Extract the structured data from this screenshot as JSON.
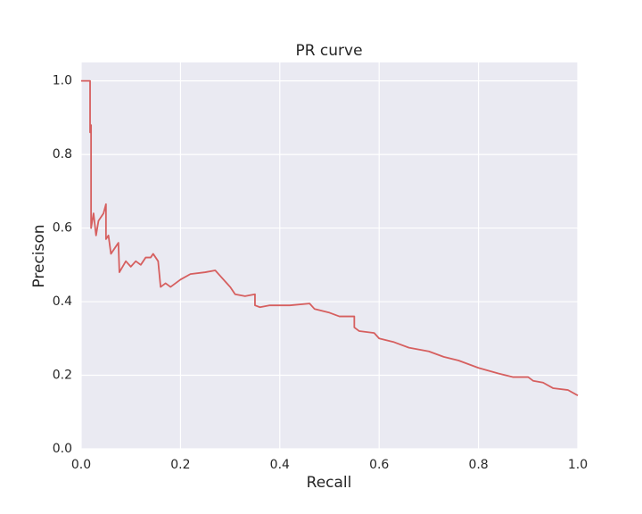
{
  "chart_data": {
    "type": "line",
    "title": "PR curve",
    "x_label": "Recall",
    "y_label": "Precison",
    "x": [
      0,
      0.018,
      0.018,
      0.02,
      0.02,
      0.025,
      0.03,
      0.035,
      0.045,
      0.05,
      0.05,
      0.055,
      0.06,
      0.07,
      0.075,
      0.077,
      0.09,
      0.1,
      0.11,
      0.12,
      0.13,
      0.14,
      0.145,
      0.15,
      0.155,
      0.16,
      0.17,
      0.18,
      0.2,
      0.22,
      0.25,
      0.27,
      0.28,
      0.3,
      0.31,
      0.33,
      0.35,
      0.35,
      0.36,
      0.38,
      0.4,
      0.42,
      0.46,
      0.47,
      0.5,
      0.52,
      0.55,
      0.55,
      0.56,
      0.59,
      0.6,
      0.63,
      0.66,
      0.7,
      0.73,
      0.76,
      0.8,
      0.84,
      0.87,
      0.9,
      0.91,
      0.93,
      0.95,
      0.98,
      1.0
    ],
    "series": [
      {
        "color": "#d65f5f",
        "values": [
          1.0,
          1.0,
          0.86,
          0.88,
          0.6,
          0.64,
          0.58,
          0.62,
          0.64,
          0.665,
          0.57,
          0.58,
          0.53,
          0.55,
          0.56,
          0.48,
          0.51,
          0.495,
          0.51,
          0.5,
          0.52,
          0.52,
          0.53,
          0.52,
          0.51,
          0.44,
          0.45,
          0.44,
          0.46,
          0.475,
          0.48,
          0.485,
          0.47,
          0.44,
          0.42,
          0.415,
          0.42,
          0.39,
          0.385,
          0.39,
          0.39,
          0.39,
          0.395,
          0.38,
          0.37,
          0.36,
          0.36,
          0.33,
          0.32,
          0.315,
          0.3,
          0.29,
          0.275,
          0.265,
          0.25,
          0.24,
          0.22,
          0.205,
          0.195,
          0.195,
          0.185,
          0.18,
          0.165,
          0.16,
          0.145
        ]
      }
    ],
    "xlim": [
      0,
      1
    ],
    "ylim": [
      0,
      1.05
    ],
    "xticks": [
      {
        "value": 0,
        "label": "0.0"
      },
      0.2,
      0.4,
      0.6,
      0.8,
      {
        "value": 1,
        "label": "1.0"
      }
    ],
    "yticks": [
      {
        "value": 0,
        "label": "0.0"
      },
      0.2,
      0.4,
      0.6,
      0.8,
      {
        "value": 1,
        "label": "1.0"
      }
    ],
    "grid": true
  }
}
